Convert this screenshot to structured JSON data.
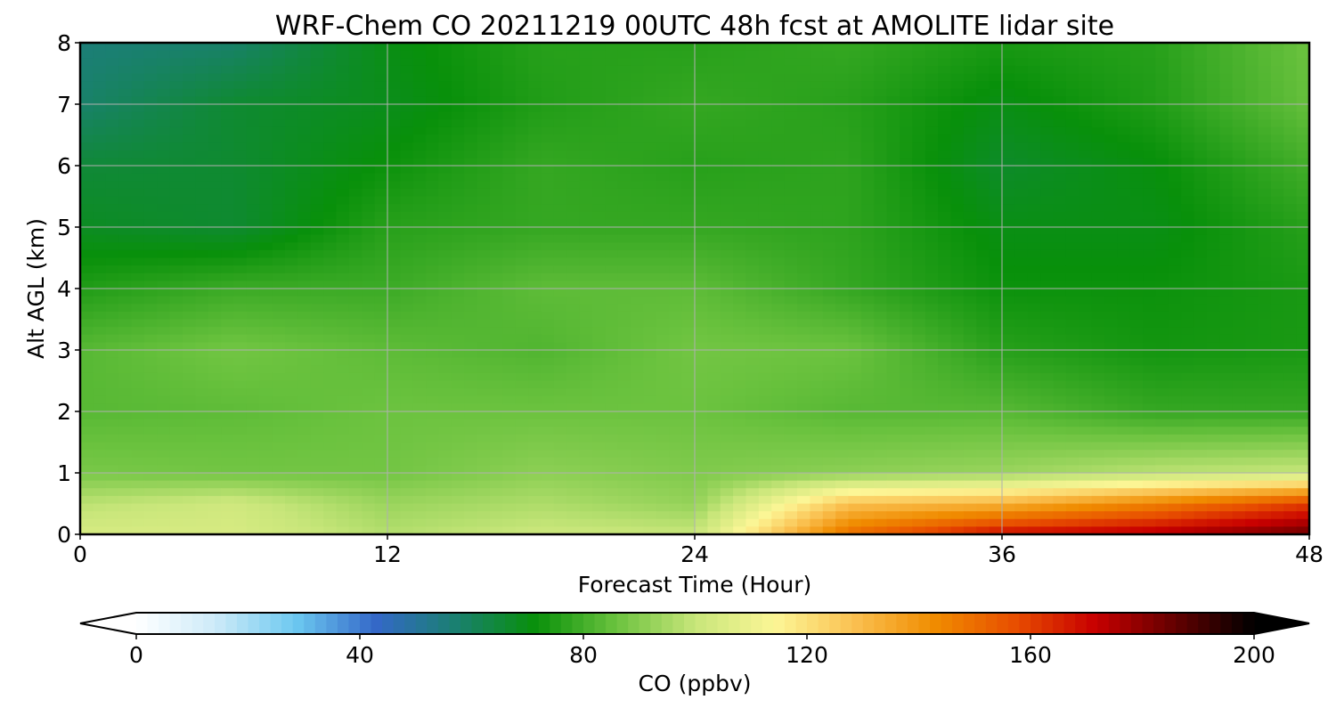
{
  "chart_data": {
    "type": "heatmap",
    "title": "WRF-Chem CO  20211219 00UTC 48h fcst at AMOLITE lidar site",
    "xlabel": "Forecast Time (Hour)",
    "ylabel": "Alt AGL (km)",
    "xlim": [
      0,
      48
    ],
    "ylim": [
      0,
      8
    ],
    "xticks": [
      0,
      12,
      24,
      36,
      48
    ],
    "yticks": [
      0,
      1,
      2,
      3,
      4,
      5,
      6,
      7,
      8
    ],
    "grid": true,
    "x": [
      0,
      6,
      12,
      18,
      24,
      30,
      36,
      42,
      48
    ],
    "y": [
      0,
      0.5,
      1,
      2,
      3,
      4,
      5,
      6,
      7,
      8
    ],
    "z": [
      [
        104,
        104,
        97,
        101,
        100,
        150,
        170,
        175,
        185
      ],
      [
        98,
        102,
        93,
        96,
        92,
        128,
        132,
        145,
        160
      ],
      [
        88,
        87,
        87,
        91,
        89,
        91,
        93,
        98,
        100
      ],
      [
        83,
        84,
        86,
        86,
        86,
        83,
        83,
        78,
        78
      ],
      [
        83,
        87,
        84,
        82,
        87,
        86,
        76,
        73,
        74
      ],
      [
        75,
        79,
        79,
        84,
        84,
        78,
        72,
        72,
        74
      ],
      [
        68,
        66,
        76,
        78,
        78,
        77,
        70,
        70,
        76
      ],
      [
        65,
        66,
        72,
        78,
        76,
        77,
        67,
        71,
        80
      ],
      [
        58,
        66,
        69,
        75,
        78,
        76,
        70,
        75,
        85
      ],
      [
        56,
        58,
        70,
        76,
        76,
        78,
        74,
        76,
        86
      ]
    ],
    "colorbar": {
      "label": "CO  (ppbv)",
      "ticks": [
        0,
        40,
        80,
        120,
        160,
        200
      ],
      "min": 0,
      "max": 200,
      "extend": "both",
      "orientation": "horizontal",
      "colors": [
        "#ffffff",
        "#cceaf8",
        "#6cc8f0",
        "#3468c8",
        "#1a8070",
        "#08900a",
        "#6ac23e",
        "#c8e67a",
        "#fcf696",
        "#fac050",
        "#f08c00",
        "#e84e00",
        "#c80000",
        "#640000",
        "#000000"
      ]
    }
  }
}
